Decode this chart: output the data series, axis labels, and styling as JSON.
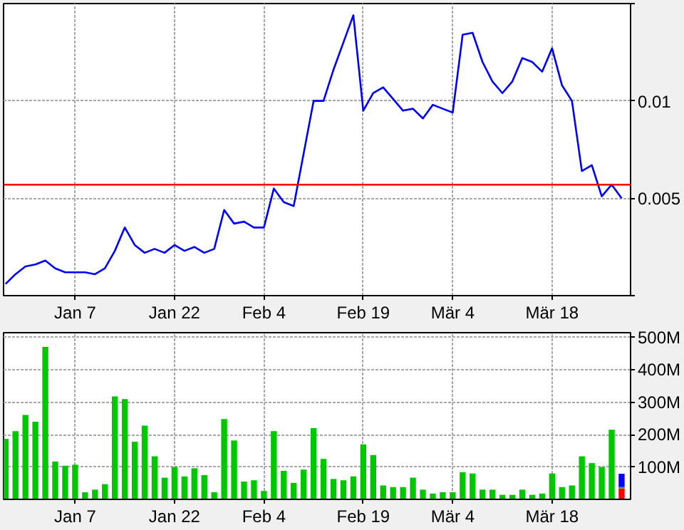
{
  "chart_data": [
    {
      "type": "line",
      "categories": [
        null,
        null,
        null,
        null,
        null,
        null,
        null,
        "Jan 7",
        null,
        null,
        null,
        null,
        null,
        null,
        null,
        null,
        null,
        "Jan 22",
        null,
        null,
        null,
        null,
        null,
        null,
        null,
        null,
        "Feb 4",
        null,
        null,
        null,
        null,
        null,
        null,
        null,
        null,
        null,
        "Feb 19",
        null,
        null,
        null,
        null,
        null,
        null,
        null,
        null,
        "Mär 4",
        null,
        null,
        null,
        null,
        null,
        null,
        null,
        null,
        null,
        "Mär 18",
        null,
        null,
        null,
        null,
        null,
        null,
        null
      ],
      "series": [
        {
          "color": "#0000ff",
          "values": [
            0.0006,
            0.0011,
            0.0015,
            0.0016,
            0.0018,
            0.0014,
            0.0012,
            0.0012,
            0.0012,
            0.0011,
            0.0014,
            0.0023,
            0.0035,
            0.0026,
            0.0022,
            0.0024,
            0.0022,
            0.0026,
            0.0023,
            0.0025,
            0.0022,
            0.0024,
            0.0044,
            0.0037,
            0.0038,
            0.0035,
            0.0035,
            0.0055,
            0.0048,
            0.0046,
            0.0073,
            0.01,
            0.01,
            0.0116,
            0.013,
            0.0144,
            0.0095,
            0.0104,
            0.0107,
            0.0101,
            0.0095,
            0.0096,
            0.0091,
            0.0098,
            0.0096,
            0.0094,
            0.0134,
            0.0135,
            0.012,
            0.011,
            0.0104,
            0.011,
            0.0122,
            0.012,
            0.0115,
            0.0127,
            0.0108,
            0.01,
            0.0064,
            0.0067,
            0.0051,
            0.0057,
            0.005
          ]
        }
      ],
      "ylim": [
        0,
        0.015
      ],
      "yticks": [
        {
          "value": 0,
          "label": null
        },
        0.005,
        0.01,
        {
          "value": 0.015,
          "label": null
        }
      ],
      "ref_lines": [
        {
          "axis": "y",
          "value": 0.0057,
          "color": "#ff0000"
        }
      ],
      "grid": true,
      "marker": "none",
      "line_style": "solid"
    },
    {
      "type": "bar",
      "stacked": true,
      "categories": [
        null,
        null,
        null,
        null,
        null,
        null,
        null,
        "Jan 7",
        null,
        null,
        null,
        null,
        null,
        null,
        null,
        null,
        null,
        "Jan 22",
        null,
        null,
        null,
        null,
        null,
        null,
        null,
        null,
        "Feb 4",
        null,
        null,
        null,
        null,
        null,
        null,
        null,
        null,
        null,
        "Feb 19",
        null,
        null,
        null,
        null,
        null,
        null,
        null,
        null,
        "Mär 4",
        null,
        null,
        null,
        null,
        null,
        null,
        null,
        null,
        null,
        "Mär 18",
        null,
        null,
        null,
        null,
        null,
        null,
        null
      ],
      "series": [
        {
          "color": "#ff0000",
          "values": [
            null,
            null,
            null,
            null,
            null,
            null,
            null,
            null,
            null,
            null,
            null,
            null,
            null,
            null,
            null,
            null,
            null,
            null,
            null,
            null,
            null,
            null,
            null,
            null,
            null,
            null,
            null,
            null,
            null,
            null,
            null,
            null,
            null,
            null,
            null,
            null,
            null,
            null,
            null,
            null,
            null,
            null,
            null,
            null,
            null,
            null,
            null,
            null,
            null,
            null,
            null,
            null,
            null,
            null,
            null,
            null,
            null,
            null,
            null,
            null,
            null,
            null,
            34
          ]
        },
        {
          "color": "#00c800",
          "values": [
            187,
            211,
            261,
            240,
            471,
            117,
            104,
            107,
            22,
            30,
            47,
            318,
            310,
            178,
            228,
            133,
            67,
            100,
            71,
            96,
            75,
            22,
            248,
            182,
            55,
            59,
            26,
            211,
            88,
            51,
            92,
            220,
            125,
            63,
            59,
            71,
            170,
            137,
            43,
            38,
            38,
            67,
            30,
            18,
            22,
            22,
            84,
            80,
            30,
            30,
            14,
            14,
            30,
            14,
            18,
            80,
            38,
            43,
            133,
            112,
            100,
            215,
            4
          ]
        },
        {
          "color": "#0000ff",
          "values": [
            null,
            null,
            null,
            null,
            null,
            null,
            null,
            null,
            null,
            null,
            null,
            null,
            null,
            null,
            null,
            null,
            null,
            null,
            null,
            null,
            null,
            null,
            null,
            null,
            null,
            null,
            null,
            null,
            null,
            null,
            null,
            null,
            null,
            null,
            null,
            null,
            null,
            null,
            null,
            null,
            null,
            null,
            null,
            null,
            null,
            null,
            null,
            null,
            null,
            null,
            null,
            null,
            null,
            null,
            null,
            null,
            null,
            null,
            null,
            null,
            null,
            null,
            41
          ]
        }
      ],
      "ylim": [
        0,
        515
      ],
      "yticks": [
        {
          "value": 100,
          "label": "100M"
        },
        {
          "value": 200,
          "label": "200M"
        },
        {
          "value": 300,
          "label": "300M"
        },
        {
          "value": 400,
          "label": "400M"
        },
        {
          "value": 500,
          "label": "500M"
        }
      ],
      "grid": true
    }
  ]
}
